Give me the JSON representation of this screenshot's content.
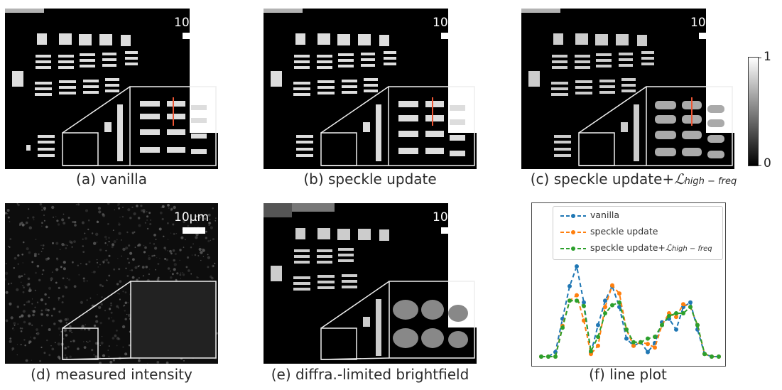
{
  "scale_label": "10μm",
  "captions": {
    "a": "(a) vanilla",
    "b": "(b) speckle update",
    "c_prefix": "(c) speckle update+",
    "c_L": "ℒ",
    "c_sub": "high − freq",
    "d": "(d) measured intensity",
    "e": "(e) diffra.-limited brightfield",
    "f": "(f) line plot"
  },
  "colorbar": {
    "max": "1",
    "min": "0"
  },
  "chart_data": {
    "type": "line",
    "x": [
      0,
      1,
      2,
      3,
      4,
      5,
      6,
      7,
      8,
      9,
      10,
      11,
      12,
      13,
      14,
      15,
      16,
      17,
      18,
      19,
      20,
      21,
      22,
      23,
      24,
      25
    ],
    "series": [
      {
        "name": "vanilla",
        "color": "#1f77b4",
        "values": [
          0.0,
          0.0,
          0.05,
          0.42,
          0.78,
          1.0,
          0.6,
          0.04,
          0.35,
          0.62,
          0.78,
          0.55,
          0.2,
          0.12,
          0.16,
          0.05,
          0.15,
          0.38,
          0.42,
          0.3,
          0.55,
          0.6,
          0.3,
          0.03,
          0.0,
          0.0
        ]
      },
      {
        "name": "speckle update",
        "color": "#ff7f0e",
        "values": [
          0.0,
          0.0,
          0.0,
          0.34,
          0.62,
          0.68,
          0.4,
          0.03,
          0.12,
          0.55,
          0.79,
          0.7,
          0.3,
          0.12,
          0.16,
          0.14,
          0.1,
          0.35,
          0.48,
          0.44,
          0.58,
          0.55,
          0.35,
          0.03,
          0.0,
          0.0
        ]
      },
      {
        "name": "speckle update+ℒhigh − freq",
        "color": "#2ca02c",
        "values": [
          0.0,
          0.0,
          0.0,
          0.32,
          0.62,
          0.62,
          0.56,
          0.06,
          0.22,
          0.48,
          0.57,
          0.6,
          0.3,
          0.16,
          0.16,
          0.2,
          0.22,
          0.35,
          0.45,
          0.48,
          0.48,
          0.55,
          0.35,
          0.03,
          0.0,
          0.0
        ]
      }
    ],
    "legend": [
      {
        "label": "vanilla"
      },
      {
        "label": "speckle update"
      },
      {
        "label_prefix": "speckle update+",
        "label_L": "ℒ",
        "label_sub": "high − freq"
      }
    ],
    "legend_position": "top",
    "grid": false,
    "axes_ticks": false
  }
}
